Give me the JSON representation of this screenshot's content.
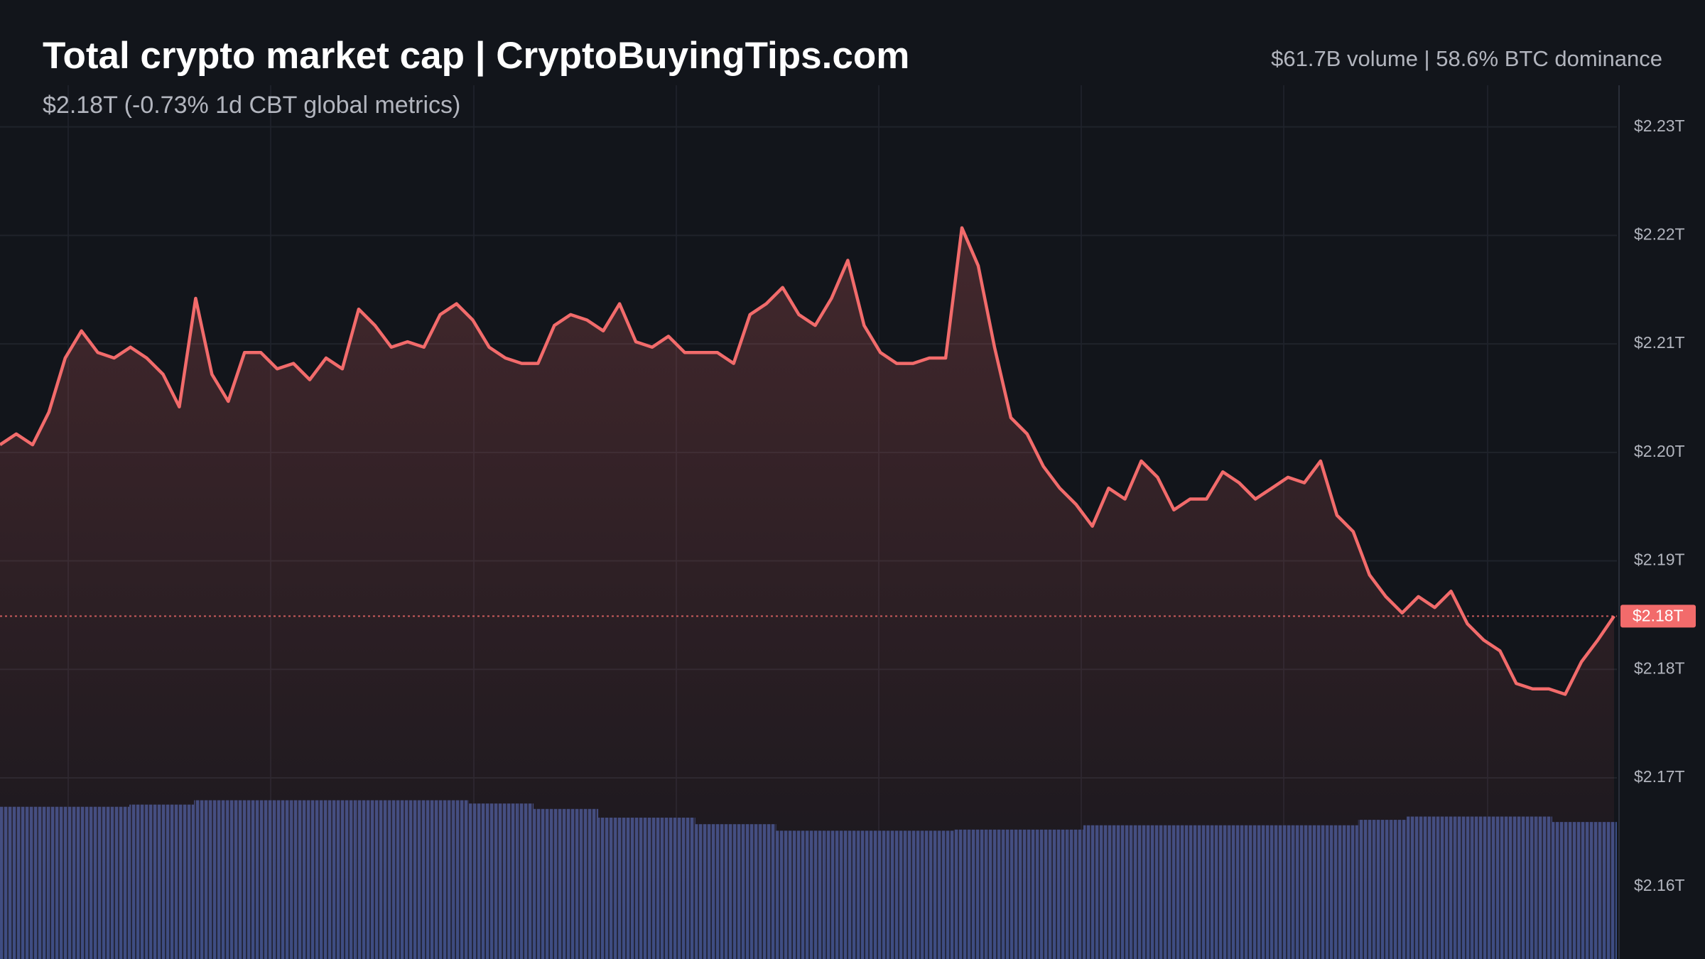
{
  "chart_data": {
    "type": "line",
    "title": "Total crypto market cap | CryptoBuyingTips.com",
    "subtitle": "$2.18T (-0.73% 1d CBT global metrics)",
    "stats": "$61.7B volume | 58.6% BTC dominance",
    "price_label": "$2.18T",
    "ylim": [
      2.1533,
      2.2417
    ],
    "yticks": [
      {
        "value": 2.23,
        "label": "$2.23T"
      },
      {
        "value": 2.22,
        "label": "$2.22T"
      },
      {
        "value": 2.21,
        "label": "$2.21T"
      },
      {
        "value": 2.2,
        "label": "$2.20T"
      },
      {
        "value": 2.19,
        "label": "$2.19T"
      },
      {
        "value": 2.18,
        "label": "$2.18T"
      },
      {
        "value": 2.17,
        "label": "$2.17T"
      },
      {
        "value": 2.16,
        "label": "$2.16T"
      }
    ],
    "grid": true,
    "y2lim": [
      0,
      882
    ],
    "series": [
      {
        "color": "#f26b6b",
        "values": [
          2.2007,
          2.2017,
          2.2007,
          2.2037,
          2.2087,
          2.2112,
          2.2092,
          2.2087,
          2.2097,
          2.2087,
          2.2072,
          2.2042,
          2.2142,
          2.2072,
          2.2047,
          2.2092,
          2.2092,
          2.2077,
          2.2082,
          2.2067,
          2.2087,
          2.2077,
          2.2132,
          2.2117,
          2.2097,
          2.2102,
          2.2097,
          2.2127,
          2.2137,
          2.2122,
          2.2097,
          2.2087,
          2.2082,
          2.2082,
          2.2117,
          2.2127,
          2.2122,
          2.2112,
          2.2137,
          2.2102,
          2.2097,
          2.2107,
          2.2092,
          2.2092,
          2.2092,
          2.2082,
          2.2127,
          2.2137,
          2.2152,
          2.2127,
          2.2117,
          2.2142,
          2.2177,
          2.2117,
          2.2092,
          2.2082,
          2.2082,
          2.2087,
          2.2087,
          2.2207,
          2.2172,
          2.2097,
          2.2032,
          2.2017,
          2.1987,
          2.1967,
          2.1952,
          2.1932,
          2.1967,
          2.1957,
          2.1992,
          2.1977,
          2.1947,
          2.1957,
          2.1957,
          2.1982,
          2.1972,
          2.1957,
          2.1967,
          2.1977,
          2.1972,
          2.1992,
          2.1942,
          2.1927,
          2.1887,
          2.1867,
          2.1852,
          2.1867,
          2.1857,
          2.1872,
          2.1842,
          2.1827,
          2.1817,
          2.1787,
          2.1782,
          2.1782,
          2.1777,
          2.1807,
          2.1827,
          2.1849
        ]
      },
      {
        "axis": "y2",
        "color": "#34467a",
        "values": [
          140,
          140,
          140,
          140,
          140,
          140,
          140,
          140,
          142,
          142,
          142,
          142,
          146,
          146,
          146,
          146,
          146,
          146,
          146,
          146,
          146,
          146,
          146,
          146,
          146,
          146,
          146,
          146,
          146,
          143,
          143,
          143,
          143,
          138,
          138,
          138,
          138,
          130,
          130,
          130,
          130,
          130,
          130,
          124,
          124,
          124,
          124,
          124,
          118,
          118,
          118,
          118,
          118,
          118,
          118,
          118,
          118,
          118,
          118,
          119,
          119,
          119,
          119,
          119,
          119,
          119,
          119,
          123,
          123,
          123,
          123,
          123,
          123,
          123,
          123,
          123,
          123,
          123,
          123,
          123,
          123,
          123,
          123,
          123,
          128,
          128,
          128,
          131,
          131,
          131,
          131,
          131,
          131,
          131,
          131,
          131,
          126,
          126,
          126,
          126
        ]
      }
    ]
  }
}
